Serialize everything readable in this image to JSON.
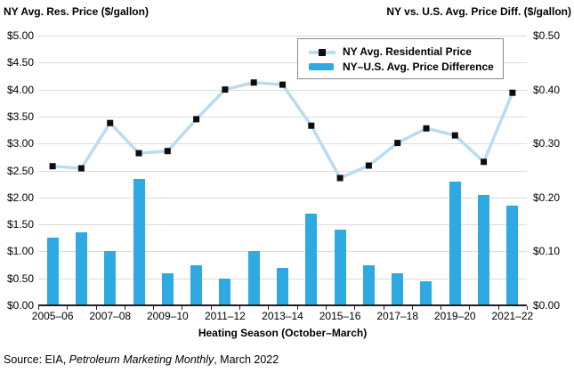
{
  "header": {
    "left_axis_title": "NY Avg. Res. Price ($/gallon)",
    "right_axis_title": "NY vs. U.S. Avg. Price Diff. ($/gallon)"
  },
  "legend": {
    "items": [
      {
        "label": "NY Avg. Residential Price",
        "swatch": "light-blue-line-with-black-square-marker"
      },
      {
        "label": "NY–U.S. Avg. Price Difference",
        "swatch": "blue-bar"
      }
    ]
  },
  "footer": {
    "source_prefix": "Source: EIA, ",
    "source_italic": "Petroleum Marketing Monthly",
    "source_suffix": ", March 2022"
  },
  "colors": {
    "bar": "#2fa9e1",
    "line": "#b9dcf1",
    "marker": "#0d0d0d",
    "gridline": "#dbdbdb",
    "axis_line": "#1f1f1f",
    "text": "#000000",
    "legend_border": "#898989"
  },
  "chart_data": {
    "type": "combo-line-bar-dual-axis",
    "title": "",
    "x_axis_label": "Heating Season (October–March)",
    "categories": [
      "2005–06",
      "2006–07",
      "2007–08",
      "2008–09",
      "2009–10",
      "2010–11",
      "2011–12",
      "2012–13",
      "2013–14",
      "2014–15",
      "2015–16",
      "2016–17",
      "2017–18",
      "2018–19",
      "2019–20",
      "2020–21",
      "2021–22"
    ],
    "x_tick_labels_shown": [
      "2005–06",
      "2007–08",
      "2009–10",
      "2011–12",
      "2013–14",
      "2015–16",
      "2017–18",
      "2019–20",
      "2021–22"
    ],
    "left_axis": {
      "title": "NY Avg. Res. Price ($/gallon)",
      "range": [
        0,
        5
      ],
      "tick_interval": 0.5,
      "tick_labels": [
        "$5.00",
        "$4.50",
        "$4.00",
        "$3.50",
        "$3.00",
        "$2.50",
        "$2.00",
        "$1.50",
        "$1.00",
        "$0.50",
        "$0.00"
      ]
    },
    "right_axis": {
      "title": "NY vs. U.S. Avg. Price Diff. ($/gallon)",
      "range": [
        0,
        0.5
      ],
      "tick_interval": 0.1,
      "tick_labels": [
        "$0.50",
        "$0.40",
        "$0.30",
        "$0.20",
        "$0.10",
        "$0.00"
      ]
    },
    "grid": "horizontal-only, every 0.50 left / 0.05 right",
    "legend_position": "top-center-inside",
    "series": [
      {
        "name": "NY Avg. Residential Price",
        "type": "line",
        "axis": "left",
        "marker": "black-square",
        "values": [
          2.58,
          2.54,
          3.38,
          2.82,
          2.86,
          3.45,
          4.0,
          4.13,
          4.09,
          3.33,
          2.36,
          2.59,
          3.01,
          3.28,
          3.15,
          2.66,
          3.94
        ]
      },
      {
        "name": "NY–U.S. Avg. Price Difference",
        "type": "bar",
        "axis": "right",
        "values": [
          0.125,
          0.135,
          0.1,
          0.235,
          0.06,
          0.075,
          0.05,
          0.1,
          0.07,
          0.17,
          0.14,
          0.075,
          0.06,
          0.045,
          0.23,
          0.205,
          0.185
        ]
      }
    ]
  }
}
